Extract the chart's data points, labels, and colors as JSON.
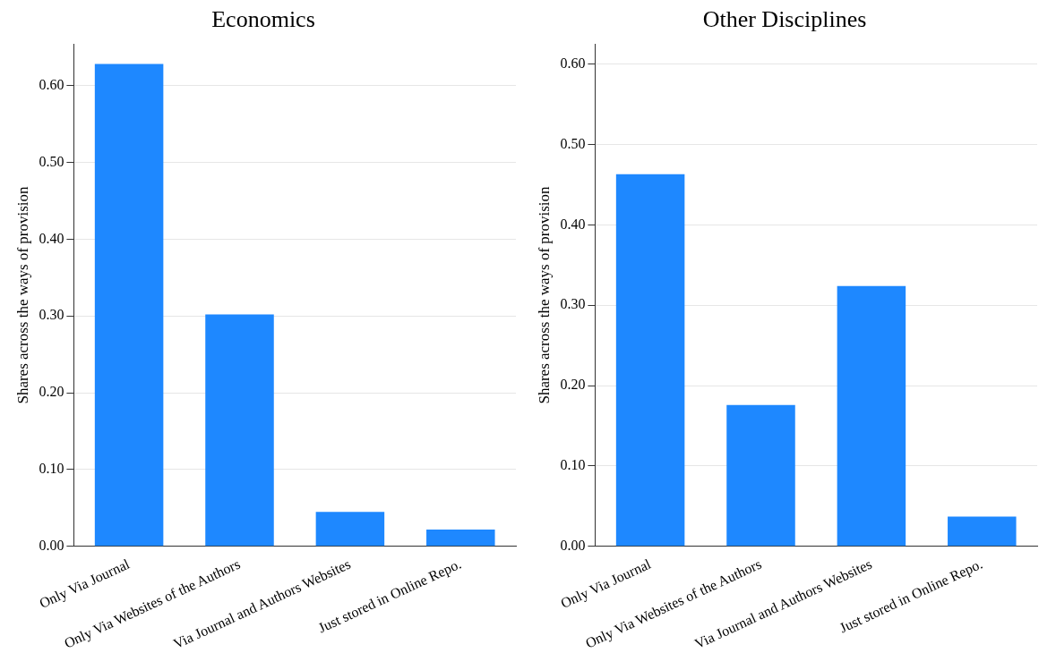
{
  "chart_data": [
    {
      "type": "bar",
      "title": "Economics",
      "ylabel": "Shares across the ways of provision",
      "categories": [
        "Only Via Journal",
        "Only Via Websites of the Authors",
        "Via Journal and Authors Websites",
        "Just stored in Online Repo."
      ],
      "values": [
        0.628,
        0.302,
        0.045,
        0.022
      ],
      "color": "#1e88ff",
      "ylim": [
        0,
        0.654
      ],
      "yticks": [
        {
          "value": 0,
          "label": "0.00"
        },
        {
          "value": 0.1,
          "label": "0.10"
        },
        {
          "value": 0.2,
          "label": "0.20"
        },
        {
          "value": 0.3,
          "label": "0.30"
        },
        {
          "value": 0.4,
          "label": "0.40"
        },
        {
          "value": 0.5,
          "label": "0.50"
        },
        {
          "value": 0.6,
          "label": "0.60"
        }
      ],
      "grid": "y"
    },
    {
      "type": "bar",
      "title": "Other Disciplines",
      "ylabel": "Shares across the ways of provision",
      "categories": [
        "Only Via Journal",
        "Only Via Websites of the Authors",
        "Via Journal and Authors Websites",
        "Just stored in Online Repo."
      ],
      "values": [
        0.463,
        0.176,
        0.324,
        0.037
      ],
      "color": "#1e88ff",
      "ylim": [
        0,
        0.625
      ],
      "yticks": [
        {
          "value": 0,
          "label": "0.00"
        },
        {
          "value": 0.1,
          "label": "0.10"
        },
        {
          "value": 0.2,
          "label": "0.20"
        },
        {
          "value": 0.3,
          "label": "0.30"
        },
        {
          "value": 0.4,
          "label": "0.40"
        },
        {
          "value": 0.5,
          "label": "0.50"
        },
        {
          "value": 0.6,
          "label": "0.60"
        }
      ],
      "grid": "y"
    }
  ]
}
